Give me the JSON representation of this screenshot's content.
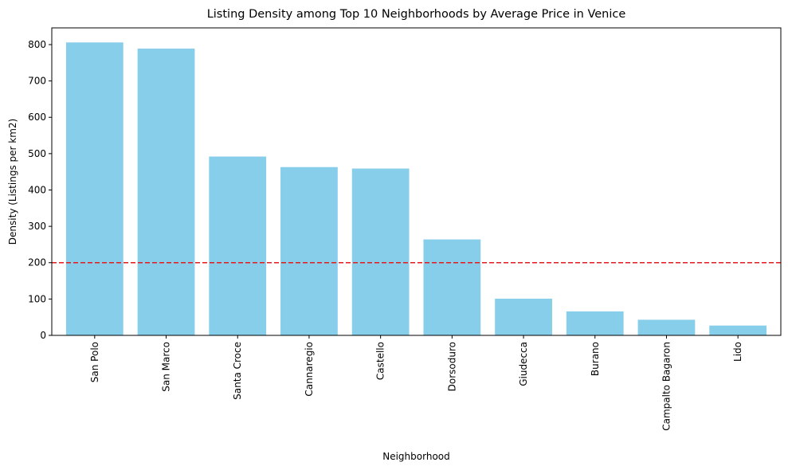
{
  "chart_data": {
    "type": "bar",
    "title": "Listing Density among Top 10 Neighborhoods by Average Price in Venice",
    "xlabel": "Neighborhood",
    "ylabel": "Density (Listings per km2)",
    "categories": [
      "San Polo",
      "San Marco",
      "Santa Croce",
      "Cannaregio",
      "Castello",
      "Dorsoduro",
      "Giudecca",
      "Burano",
      "Campalto Bagaron",
      "Lido"
    ],
    "values": [
      806,
      789,
      492,
      463,
      459,
      264,
      101,
      66,
      43,
      27
    ],
    "ylim": [
      0,
      846
    ],
    "yticks": [
      0,
      100,
      200,
      300,
      400,
      500,
      600,
      700,
      800
    ],
    "reference_line": {
      "value": 200,
      "style": "dashed",
      "color": "#e41a1c"
    },
    "bar_color": "#87ceeb",
    "grid": false
  }
}
